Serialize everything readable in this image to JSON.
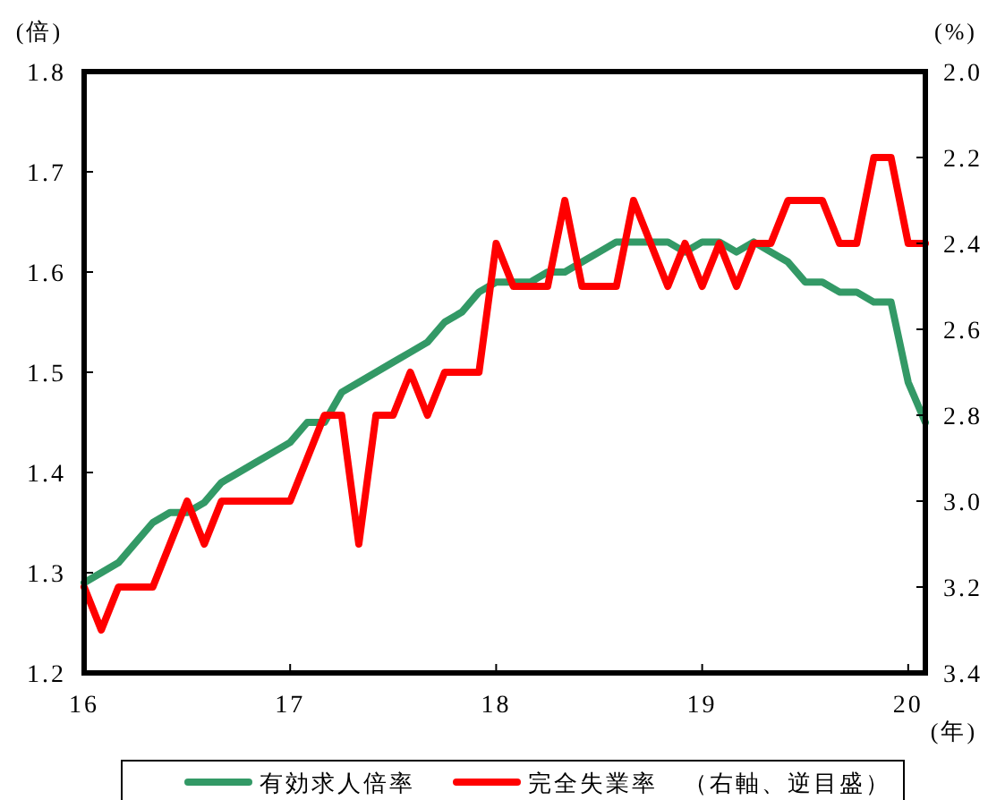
{
  "chart_data": {
    "type": "line",
    "x": [
      "2016-01",
      "2016-02",
      "2016-03",
      "2016-04",
      "2016-05",
      "2016-06",
      "2016-07",
      "2016-08",
      "2016-09",
      "2016-10",
      "2016-11",
      "2016-12",
      "2017-01",
      "2017-02",
      "2017-03",
      "2017-04",
      "2017-05",
      "2017-06",
      "2017-07",
      "2017-08",
      "2017-09",
      "2017-10",
      "2017-11",
      "2017-12",
      "2018-01",
      "2018-02",
      "2018-03",
      "2018-04",
      "2018-05",
      "2018-06",
      "2018-07",
      "2018-08",
      "2018-09",
      "2018-10",
      "2018-11",
      "2018-12",
      "2019-01",
      "2019-02",
      "2019-03",
      "2019-04",
      "2019-05",
      "2019-06",
      "2019-07",
      "2019-08",
      "2019-09",
      "2019-10",
      "2019-11",
      "2019-12",
      "2020-01",
      "2020-02"
    ],
    "series": [
      {
        "name": "有効求人倍率",
        "color": "#339966",
        "values": [
          1.29,
          1.3,
          1.31,
          1.33,
          1.35,
          1.36,
          1.36,
          1.37,
          1.39,
          1.4,
          1.41,
          1.42,
          1.43,
          1.45,
          1.45,
          1.48,
          1.49,
          1.5,
          1.51,
          1.52,
          1.53,
          1.55,
          1.56,
          1.58,
          1.59,
          1.59,
          1.59,
          1.6,
          1.6,
          1.61,
          1.62,
          1.63,
          1.63,
          1.63,
          1.63,
          1.62,
          1.63,
          1.63,
          1.62,
          1.63,
          1.62,
          1.61,
          1.59,
          1.59,
          1.58,
          1.58,
          1.57,
          1.57,
          1.49,
          1.45
        ]
      },
      {
        "name": "完全失業率　（右軸、逆目盛）",
        "color": "#ff0000",
        "axis": "y2",
        "values": [
          3.2,
          3.3,
          3.2,
          3.2,
          3.2,
          3.1,
          3.0,
          3.1,
          3.0,
          3.0,
          3.0,
          3.0,
          3.0,
          2.9,
          2.8,
          2.8,
          3.1,
          2.8,
          2.8,
          2.7,
          2.8,
          2.7,
          2.7,
          2.7,
          2.4,
          2.5,
          2.5,
          2.5,
          2.3,
          2.5,
          2.5,
          2.5,
          2.3,
          2.4,
          2.5,
          2.4,
          2.5,
          2.4,
          2.5,
          2.4,
          2.4,
          2.3,
          2.3,
          2.3,
          2.4,
          2.4,
          2.2,
          2.2,
          2.4,
          2.4
        ]
      }
    ],
    "xlim": [
      "2016-01",
      "2020-02"
    ],
    "xticks": [
      {
        "value": "2016-01",
        "label": "16"
      },
      {
        "value": "2017-01",
        "label": "17"
      },
      {
        "value": "2018-01",
        "label": "18"
      },
      {
        "value": "2019-01",
        "label": "19"
      },
      {
        "value": "2020-01",
        "label": "20"
      }
    ],
    "ylim": [
      1.2,
      1.8
    ],
    "yticks": [
      1.2,
      1.3,
      1.4,
      1.5,
      1.6,
      1.7,
      1.8
    ],
    "y2lim": [
      3.4,
      2.0
    ],
    "y2ticks": [
      {
        "value": 2,
        "label": "2.0"
      },
      2.2,
      2.4,
      2.6,
      2.8,
      {
        "value": 3,
        "label": "3.0"
      },
      3.2,
      3.4
    ],
    "ylabel": "(倍)",
    "y2label": "(%)",
    "xlabel": "(年)",
    "legend": "bottom",
    "grid": false,
    "marker": "none",
    "line_style": "solid"
  }
}
